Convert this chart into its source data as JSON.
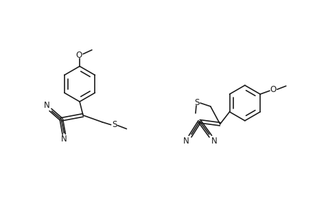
{
  "background_color": "#ffffff",
  "line_color": "#1a1a1a",
  "line_width": 1.2,
  "font_size": 8.5,
  "figsize": [
    4.6,
    3.0
  ],
  "dpi": 100,
  "xlim": [
    0,
    460
  ],
  "ylim": [
    0,
    300
  ]
}
